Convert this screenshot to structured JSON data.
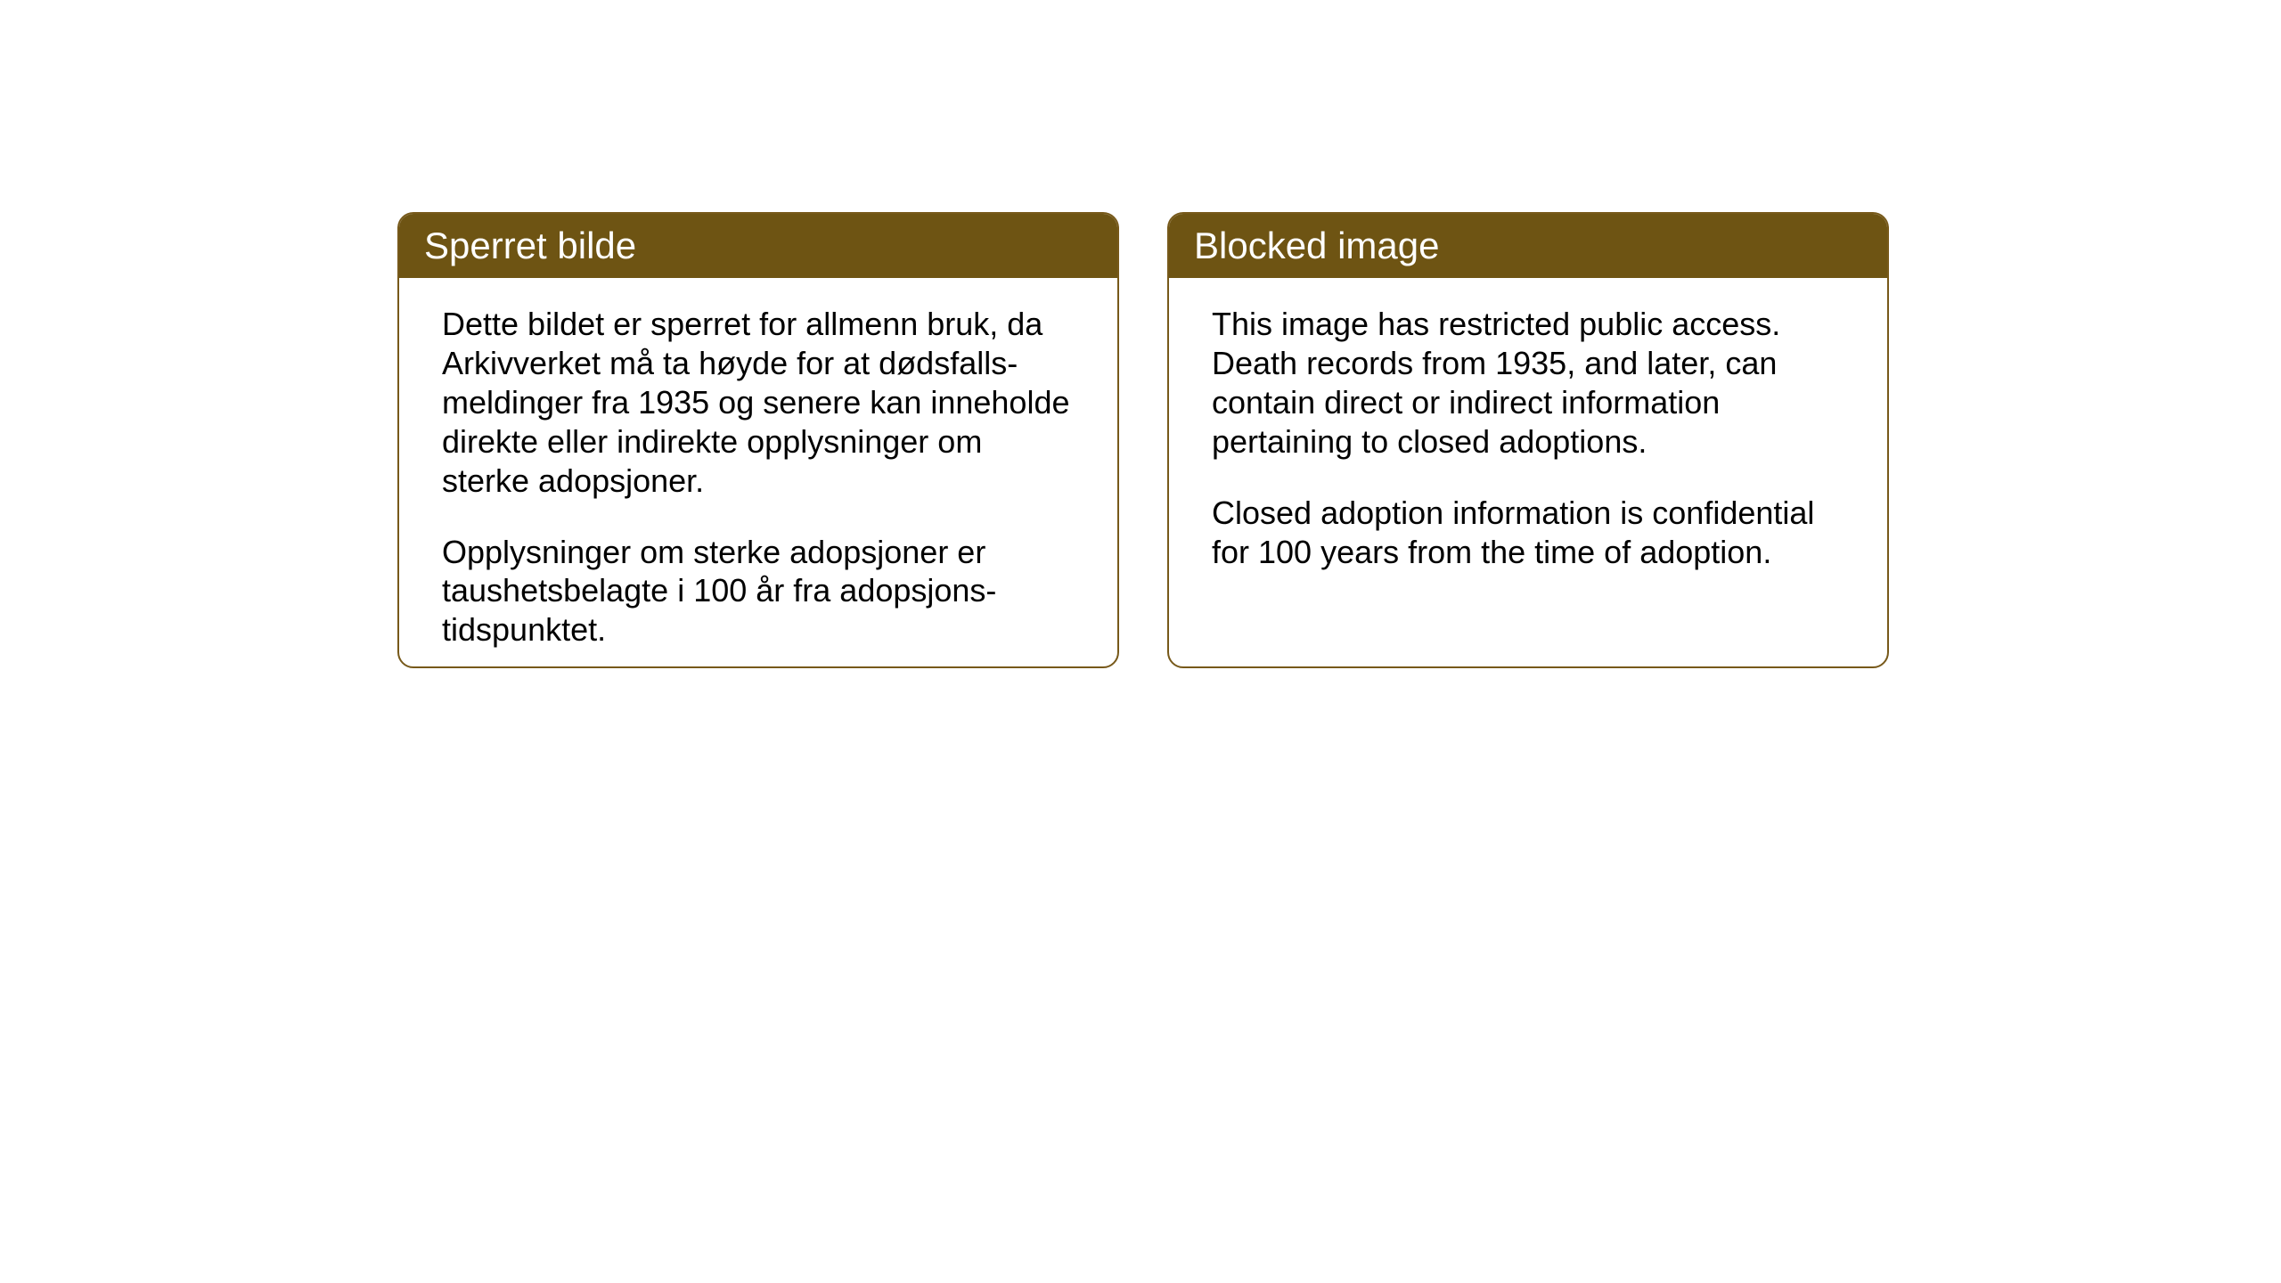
{
  "layout": {
    "background_color": "#ffffff",
    "card_border_color": "#77591a",
    "card_header_bg": "#6e5413",
    "card_header_text_color": "#ffffff",
    "card_body_text_color": "#000000",
    "card_border_radius": 18,
    "card_gap": 54,
    "header_fontsize": 42,
    "body_fontsize": 36
  },
  "cards": {
    "norwegian": {
      "title": "Sperret bilde",
      "paragraph1": "Dette bildet er sperret for allmenn bruk, da Arkivverket må ta høyde for at dødsfalls-meldinger fra 1935 og senere kan inneholde direkte eller indirekte opplysninger om sterke adopsjoner.",
      "paragraph2": "Opplysninger om sterke adopsjoner er taushetsbelagte i 100 år fra adopsjons-tidspunktet."
    },
    "english": {
      "title": "Blocked image",
      "paragraph1": "This image has restricted public access. Death records from 1935, and later, can contain direct or indirect information pertaining to closed adoptions.",
      "paragraph2": "Closed adoption information is confidential for 100 years from the time of adoption."
    }
  }
}
